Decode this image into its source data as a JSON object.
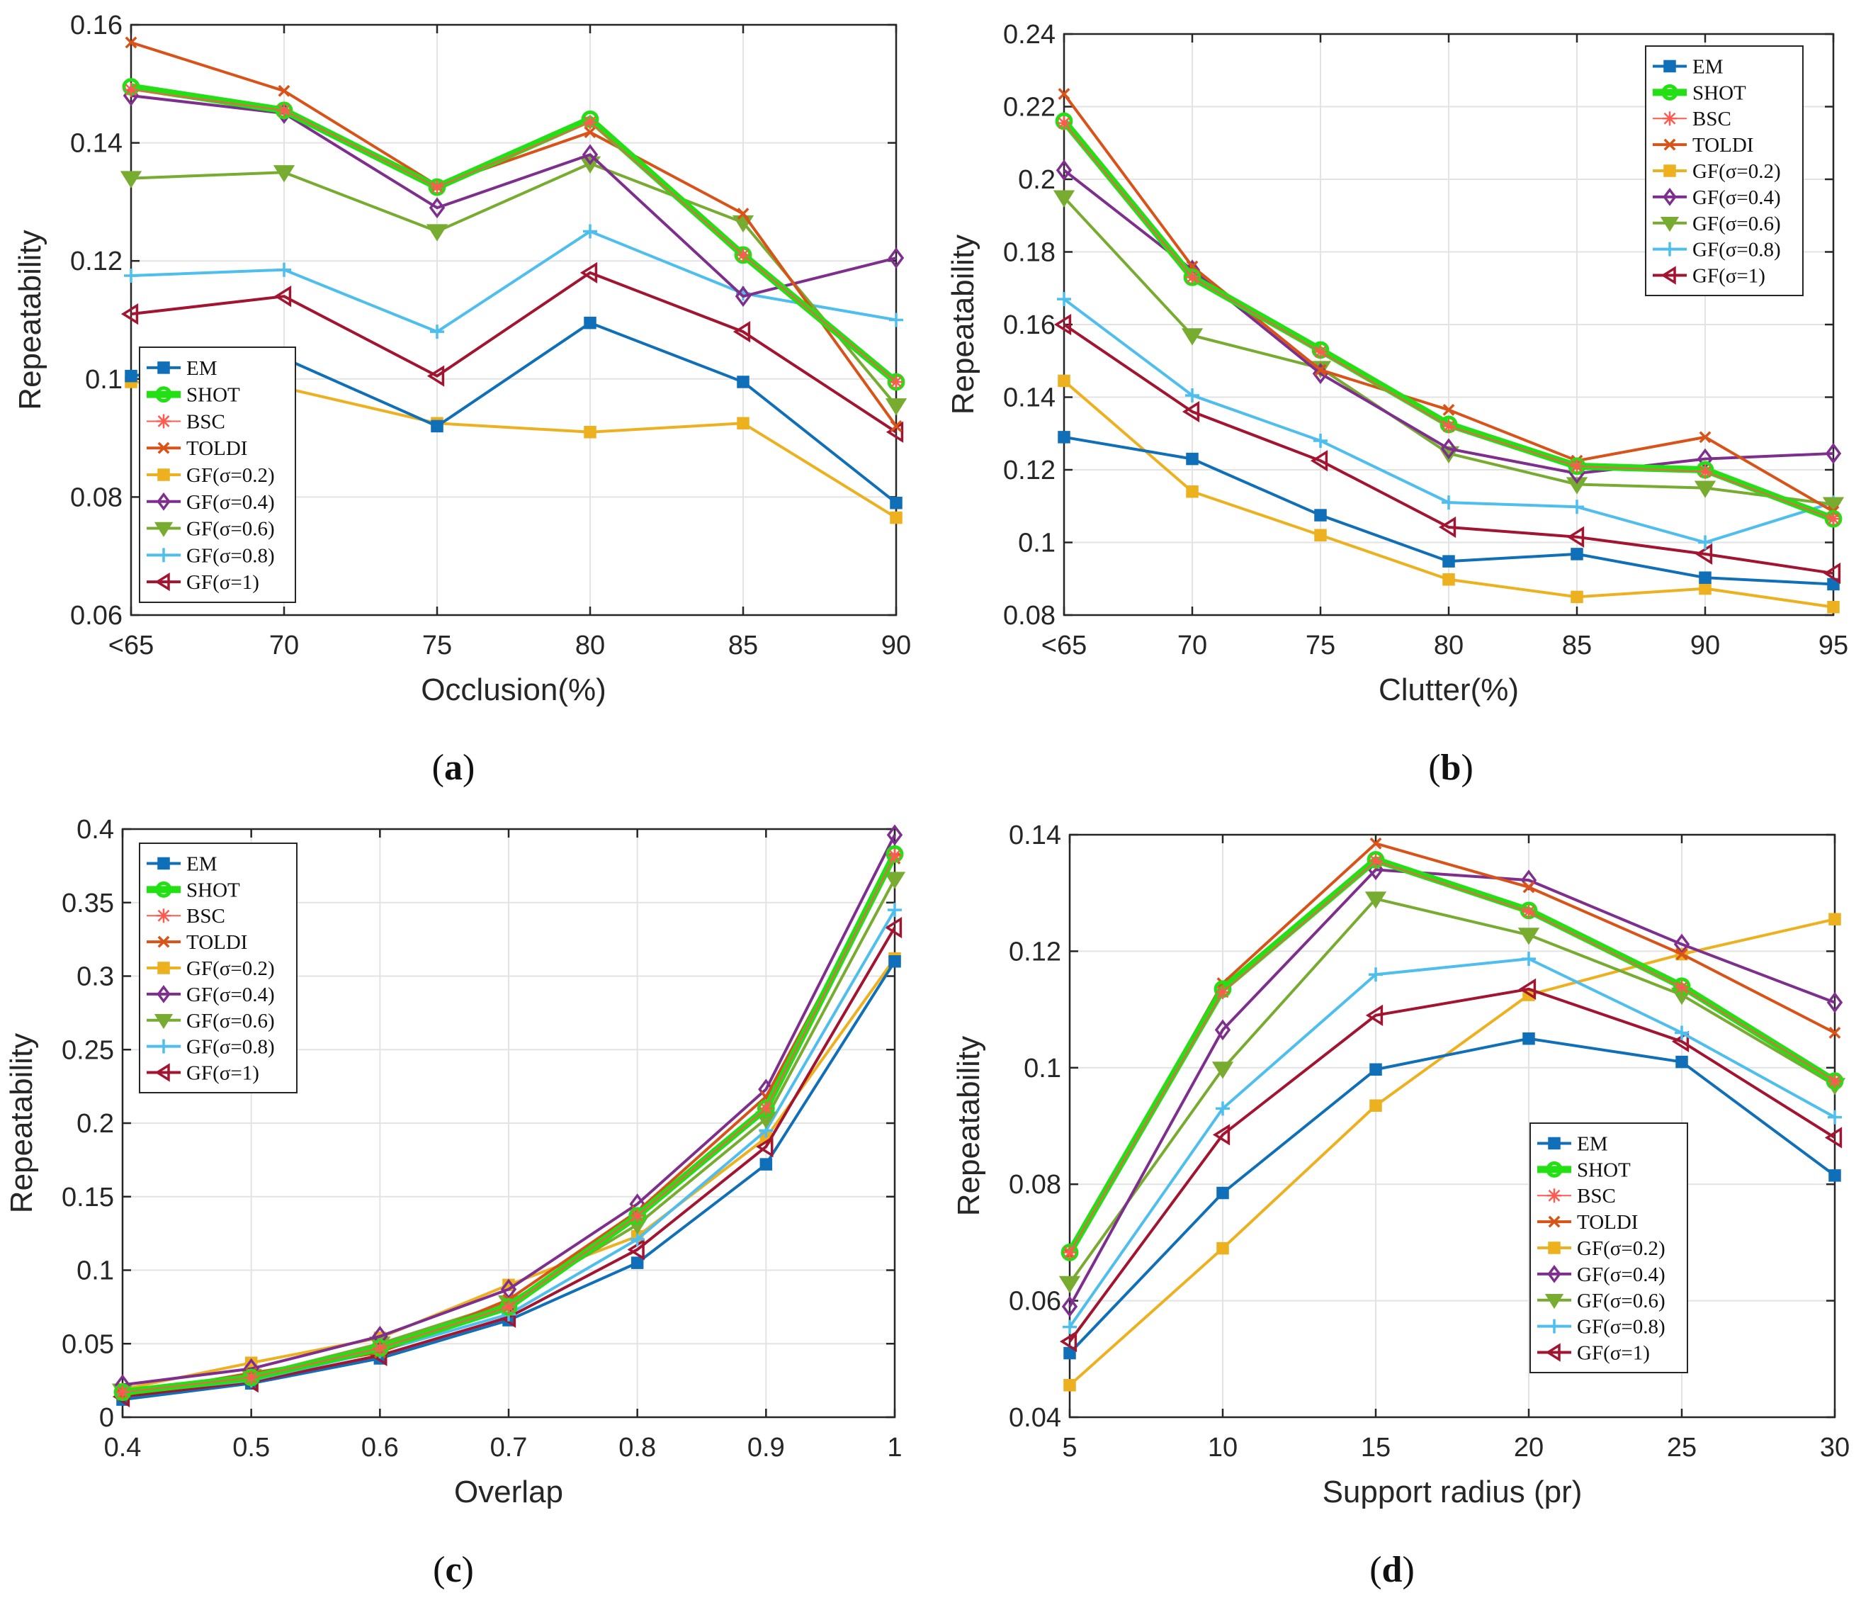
{
  "colors": {
    "EM": "#0f6fb8",
    "SHOT": "#22e014",
    "BSC": "#ff5a4f",
    "TOLDI": "#d95319",
    "GF02": "#edb120",
    "GF04": "#7e2f8e",
    "GF06": "#77ac30",
    "GF08": "#4dbeee",
    "GF1": "#a2142f"
  },
  "legend_entries": [
    "EM",
    "SHOT",
    "BSC",
    "TOLDI",
    "GF(σ=0.2)",
    "GF(σ=0.4)",
    "GF(σ=0.6)",
    "GF(σ=0.8)",
    "GF(σ=1)"
  ],
  "chart_data": [
    {
      "type": "line",
      "panel_label": "a",
      "xlabel": "Occlusion(%)",
      "ylabel": "Repeatability",
      "categories": [
        "<65",
        "70",
        "75",
        "80",
        "85",
        "90"
      ],
      "ylim": [
        0.06,
        0.16
      ],
      "yticks": [
        "0.06",
        "0.08",
        "0.1",
        "0.12",
        "0.14",
        "0.16"
      ],
      "legend_position": "lower-left",
      "series": [
        {
          "name": "EM",
          "values": [
            0.1005,
            0.1035,
            0.092,
            0.1095,
            0.0995,
            0.079
          ]
        },
        {
          "name": "SHOT",
          "values": [
            0.1495,
            0.1455,
            0.1325,
            0.144,
            0.121,
            0.0995
          ]
        },
        {
          "name": "BSC",
          "values": [
            0.149,
            0.1455,
            0.1325,
            0.1435,
            0.121,
            0.0995
          ]
        },
        {
          "name": "TOLDI",
          "values": [
            0.157,
            0.1488,
            0.1328,
            0.1418,
            0.128,
            0.092
          ]
        },
        {
          "name": "GF(σ=0.2)",
          "values": [
            0.0995,
            0.0985,
            0.0925,
            0.091,
            0.0925,
            0.0765
          ]
        },
        {
          "name": "GF(σ=0.4)",
          "values": [
            0.148,
            0.145,
            0.129,
            0.138,
            0.114,
            0.1205
          ]
        },
        {
          "name": "GF(σ=0.6)",
          "values": [
            0.134,
            0.135,
            0.125,
            0.1365,
            0.1265,
            0.0955
          ]
        },
        {
          "name": "GF(σ=0.8)",
          "values": [
            0.1175,
            0.1185,
            0.108,
            0.125,
            0.1145,
            0.11
          ]
        },
        {
          "name": "GF(σ=1)",
          "values": [
            0.111,
            0.114,
            0.1005,
            0.118,
            0.108,
            0.091
          ]
        }
      ]
    },
    {
      "type": "line",
      "panel_label": "b",
      "xlabel": "Clutter(%)",
      "ylabel": "Repeatability",
      "categories": [
        "<65",
        "70",
        "75",
        "80",
        "85",
        "90",
        "95"
      ],
      "ylim": [
        0.08,
        0.24
      ],
      "yticks": [
        "0.08",
        "0.1",
        "0.12",
        "0.14",
        "0.16",
        "0.18",
        "0.2",
        "0.22",
        "0.24"
      ],
      "legend_position": "top-right",
      "series": [
        {
          "name": "EM",
          "values": [
            0.129,
            0.123,
            0.1075,
            0.0948,
            0.0968,
            0.0903,
            0.0885
          ]
        },
        {
          "name": "SHOT",
          "values": [
            0.216,
            0.173,
            0.153,
            0.1325,
            0.121,
            0.12,
            0.1065
          ]
        },
        {
          "name": "BSC",
          "values": [
            0.2155,
            0.173,
            0.1525,
            0.132,
            0.121,
            0.1195,
            0.1065
          ]
        },
        {
          "name": "TOLDI",
          "values": [
            0.2235,
            0.176,
            0.1475,
            0.1365,
            0.1225,
            0.129,
            0.1085
          ]
        },
        {
          "name": "GF(σ=0.2)",
          "values": [
            0.1445,
            0.114,
            0.102,
            0.0898,
            0.085,
            0.0873,
            0.0822
          ]
        },
        {
          "name": "GF(σ=0.4)",
          "values": [
            0.2025,
            0.175,
            0.1465,
            0.1258,
            0.119,
            0.123,
            0.1245
          ]
        },
        {
          "name": "GF(σ=0.6)",
          "values": [
            0.195,
            0.157,
            0.148,
            0.1245,
            0.116,
            0.115,
            0.1105
          ]
        },
        {
          "name": "GF(σ=0.8)",
          "values": [
            0.167,
            0.1405,
            0.128,
            0.111,
            0.1098,
            0.1,
            0.111
          ]
        },
        {
          "name": "GF(σ=1)",
          "values": [
            0.16,
            0.136,
            0.1225,
            0.1042,
            0.1015,
            0.0968,
            0.0915
          ]
        }
      ]
    },
    {
      "type": "line",
      "panel_label": "c",
      "xlabel": "Overlap",
      "ylabel": "Repeatability",
      "categories": [
        "0.4",
        "0.5",
        "0.6",
        "0.7",
        "0.8",
        "0.9",
        "1"
      ],
      "ylim": [
        0,
        0.4
      ],
      "yticks": [
        "0",
        "0.05",
        "0.1",
        "0.15",
        "0.2",
        "0.25",
        "0.3",
        "0.35",
        "0.4"
      ],
      "legend_position": "top-left",
      "series": [
        {
          "name": "EM",
          "values": [
            0.012,
            0.023,
            0.04,
            0.066,
            0.105,
            0.172,
            0.31
          ]
        },
        {
          "name": "SHOT",
          "values": [
            0.017,
            0.027,
            0.047,
            0.075,
            0.137,
            0.21,
            0.383
          ]
        },
        {
          "name": "BSC",
          "values": [
            0.017,
            0.027,
            0.047,
            0.075,
            0.137,
            0.21,
            0.382
          ]
        },
        {
          "name": "TOLDI",
          "values": [
            0.015,
            0.03,
            0.044,
            0.08,
            0.14,
            0.218,
            0.38
          ]
        },
        {
          "name": "GF(σ=0.2)",
          "values": [
            0.019,
            0.037,
            0.054,
            0.09,
            0.123,
            0.19,
            0.312
          ]
        },
        {
          "name": "GF(σ=0.4)",
          "values": [
            0.022,
            0.033,
            0.055,
            0.087,
            0.145,
            0.223,
            0.396
          ]
        },
        {
          "name": "GF(σ=0.6)",
          "values": [
            0.018,
            0.028,
            0.05,
            0.078,
            0.131,
            0.203,
            0.366
          ]
        },
        {
          "name": "GF(σ=0.8)",
          "values": [
            0.016,
            0.025,
            0.045,
            0.07,
            0.121,
            0.195,
            0.345
          ]
        },
        {
          "name": "GF(σ=1)",
          "values": [
            0.014,
            0.024,
            0.042,
            0.068,
            0.114,
            0.184,
            0.333
          ]
        }
      ]
    },
    {
      "type": "line",
      "panel_label": "d",
      "xlabel": "Support radius (pr)",
      "ylabel": "Repeatability",
      "categories": [
        "5",
        "10",
        "15",
        "20",
        "25",
        "30"
      ],
      "ylim": [
        0.04,
        0.14
      ],
      "yticks": [
        "0.04",
        "0.06",
        "0.08",
        "0.1",
        "0.12",
        "0.14"
      ],
      "legend_position": "lower-right",
      "series": [
        {
          "name": "EM",
          "values": [
            0.051,
            0.0785,
            0.0997,
            0.105,
            0.101,
            0.0815
          ]
        },
        {
          "name": "SHOT",
          "values": [
            0.0683,
            0.1135,
            0.1357,
            0.127,
            0.114,
            0.0977
          ]
        },
        {
          "name": "BSC",
          "values": [
            0.0683,
            0.113,
            0.1355,
            0.1268,
            0.1138,
            0.0977
          ]
        },
        {
          "name": "TOLDI",
          "values": [
            0.068,
            0.1145,
            0.1385,
            0.131,
            0.1195,
            0.106
          ]
        },
        {
          "name": "GF(σ=0.2)",
          "values": [
            0.0455,
            0.069,
            0.0935,
            0.1125,
            0.1195,
            0.1255
          ]
        },
        {
          "name": "GF(σ=0.4)",
          "values": [
            0.059,
            0.1065,
            0.134,
            0.1322,
            0.1212,
            0.1112
          ]
        },
        {
          "name": "GF(σ=0.6)",
          "values": [
            0.063,
            0.0998,
            0.129,
            0.1228,
            0.1125,
            0.097
          ]
        },
        {
          "name": "GF(σ=0.8)",
          "values": [
            0.0555,
            0.093,
            0.116,
            0.1187,
            0.106,
            0.0915
          ]
        },
        {
          "name": "GF(σ=1)",
          "values": [
            0.053,
            0.0885,
            0.109,
            0.1135,
            0.1045,
            0.088
          ]
        }
      ]
    }
  ]
}
